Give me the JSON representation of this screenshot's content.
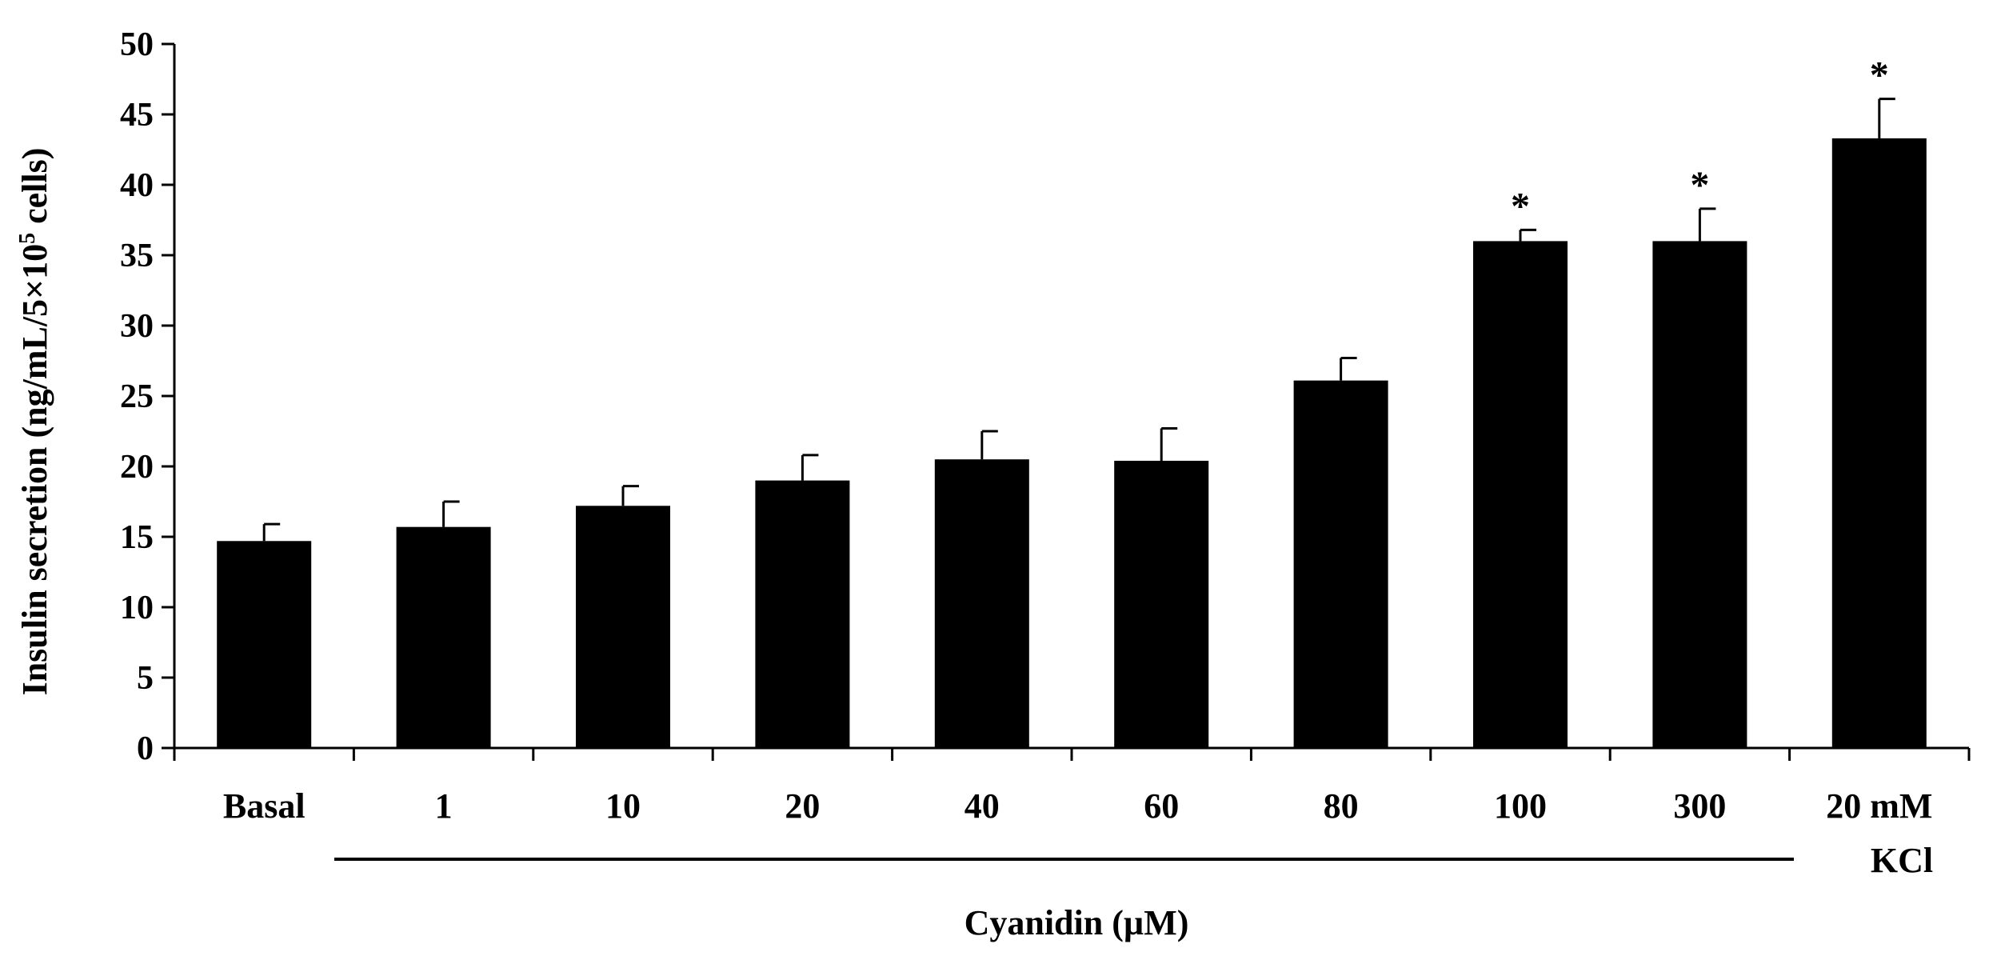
{
  "chart_data": {
    "type": "bar",
    "title": "",
    "ylabel": "Insulin secretion (ng/mL/5×10",
    "ylabel_superscript": "5",
    "ylabel_suffix": " cells)",
    "xlabel": "Cyanidin (µM)",
    "ylim": [
      0,
      50
    ],
    "ytick_step": 5,
    "categories": [
      "Basal",
      "1",
      "10",
      "20",
      "40",
      "60",
      "80",
      "100",
      "300",
      "20 mM"
    ],
    "values": [
      14.7,
      15.7,
      17.2,
      19.0,
      20.5,
      20.4,
      26.1,
      36.0,
      36.0,
      43.3
    ],
    "errors": [
      1.2,
      1.8,
      1.4,
      1.8,
      2.0,
      2.3,
      1.6,
      0.8,
      2.3,
      2.8
    ],
    "significant": [
      false,
      false,
      false,
      false,
      false,
      false,
      false,
      true,
      true,
      true
    ],
    "significance_marker": "*",
    "group_label": "KCl",
    "bar_color": "#000000"
  }
}
